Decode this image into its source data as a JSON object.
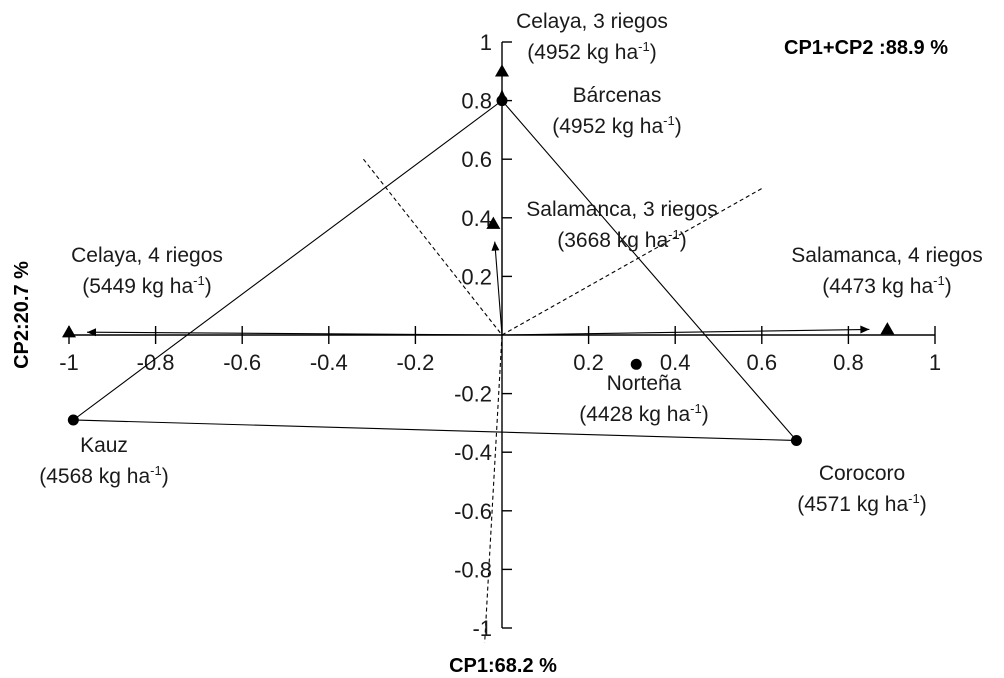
{
  "chart_data": {
    "type": "scatter",
    "subtype": "biplot",
    "xlabel": "CP1:68.2 %",
    "ylabel": "CP2:20.7 %",
    "annotation": "CP1+CP2 :88.9 %",
    "xlim": [
      -1,
      1
    ],
    "ylim": [
      -1,
      1
    ],
    "xticks": [
      -1,
      -0.8,
      -0.6,
      -0.4,
      -0.2,
      0.2,
      0.4,
      0.6,
      0.8,
      1
    ],
    "xtick_labels": [
      "-1",
      "-0.8",
      "-0.6",
      "-0.4",
      "-0.2",
      "0.2",
      "0.4",
      "0.6",
      "0.8",
      "1"
    ],
    "yticks": [
      1,
      0.8,
      0.6,
      0.4,
      0.2,
      -0.2,
      -0.4,
      -0.6,
      -0.8,
      -1
    ],
    "ytick_labels": [
      "1",
      "0.8",
      "0.6",
      "0.4",
      "0.2",
      "-0.2",
      "-0.4",
      "-0.6",
      "-0.8",
      "-1"
    ],
    "genotypes": [
      {
        "name": "Bárcenas",
        "yield": "(4952 kg ha",
        "x": 0.0,
        "y": 0.8
      },
      {
        "name": "Corocoro",
        "yield": "(4571 kg ha",
        "x": 0.68,
        "y": -0.36
      },
      {
        "name": "Kauz",
        "yield": "(4568 kg ha",
        "x": -0.99,
        "y": -0.29
      },
      {
        "name": "Norteña",
        "yield": "(4428 kg ha",
        "x": 0.31,
        "y": -0.1
      }
    ],
    "environments": [
      {
        "name": "Celaya, 3 riegos",
        "yield": "(4952 kg ha",
        "x": 0.0,
        "y": 0.9
      },
      {
        "name": "Salamanca, 3 riegos",
        "yield": "(3668 kg ha",
        "x": -0.02,
        "y": 0.38
      },
      {
        "name": "Celaya, 4 riegos",
        "yield": "(5449 kg ha",
        "x": -1.0,
        "y": 0.01
      },
      {
        "name": "Salamanca, 4 riegos",
        "yield": "(4473 kg ha",
        "x": 0.89,
        "y": 0.02
      }
    ],
    "unit_superscript": "-1",
    "unit_suffix": ")",
    "polygon_order": [
      "Bárcenas",
      "Corocoro",
      "Kauz"
    ],
    "dashed_lines": [
      {
        "from": [
          -0.32,
          0.6
        ],
        "to": [
          0.0,
          0.0
        ]
      },
      {
        "from": [
          0.0,
          0.0
        ],
        "to": [
          0.6,
          0.5
        ]
      },
      {
        "from": [
          0.0,
          0.0
        ],
        "to": [
          -0.04,
          -1.05
        ]
      }
    ],
    "grid": false
  }
}
